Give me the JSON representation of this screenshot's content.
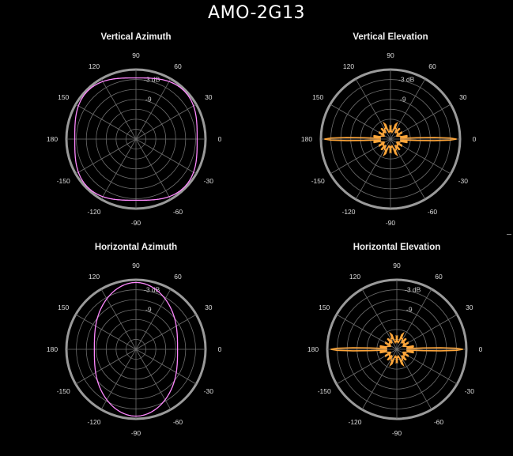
{
  "title": "AMO-2G13",
  "colors": {
    "pink": "#ff88ff",
    "orange": "#ffa63a",
    "grid": "#6e6e6e",
    "rim": "#9a9a9a"
  },
  "angle_labels": [
    "0",
    "30",
    "60",
    "90",
    "120",
    "150",
    "180",
    "-150",
    "-120",
    "-90",
    "-60",
    "-30"
  ],
  "ring_labels": [
    "-3 dB",
    "-9"
  ],
  "chart_data": [
    {
      "type": "polar",
      "title": "Vertical Azimuth",
      "series_color": "pink",
      "shape": "omni_square",
      "gain_db_approx": -2
    },
    {
      "type": "polar",
      "title": "Vertical Elevation",
      "series_color": "orange",
      "shape": "fan_beam",
      "main_lobes_deg": [
        0,
        180
      ],
      "half_power_beamwidth_deg": 7
    },
    {
      "type": "polar",
      "title": "Horizontal Azimuth",
      "series_color": "pink",
      "shape": "bidirectional_oval",
      "gain_db_at_90": -1,
      "gain_db_at_0": -13
    },
    {
      "type": "polar",
      "title": "Horizontal Elevation",
      "series_color": "orange",
      "shape": "fan_beam",
      "main_lobes_deg": [
        0,
        180
      ],
      "half_power_beamwidth_deg": 7
    }
  ]
}
